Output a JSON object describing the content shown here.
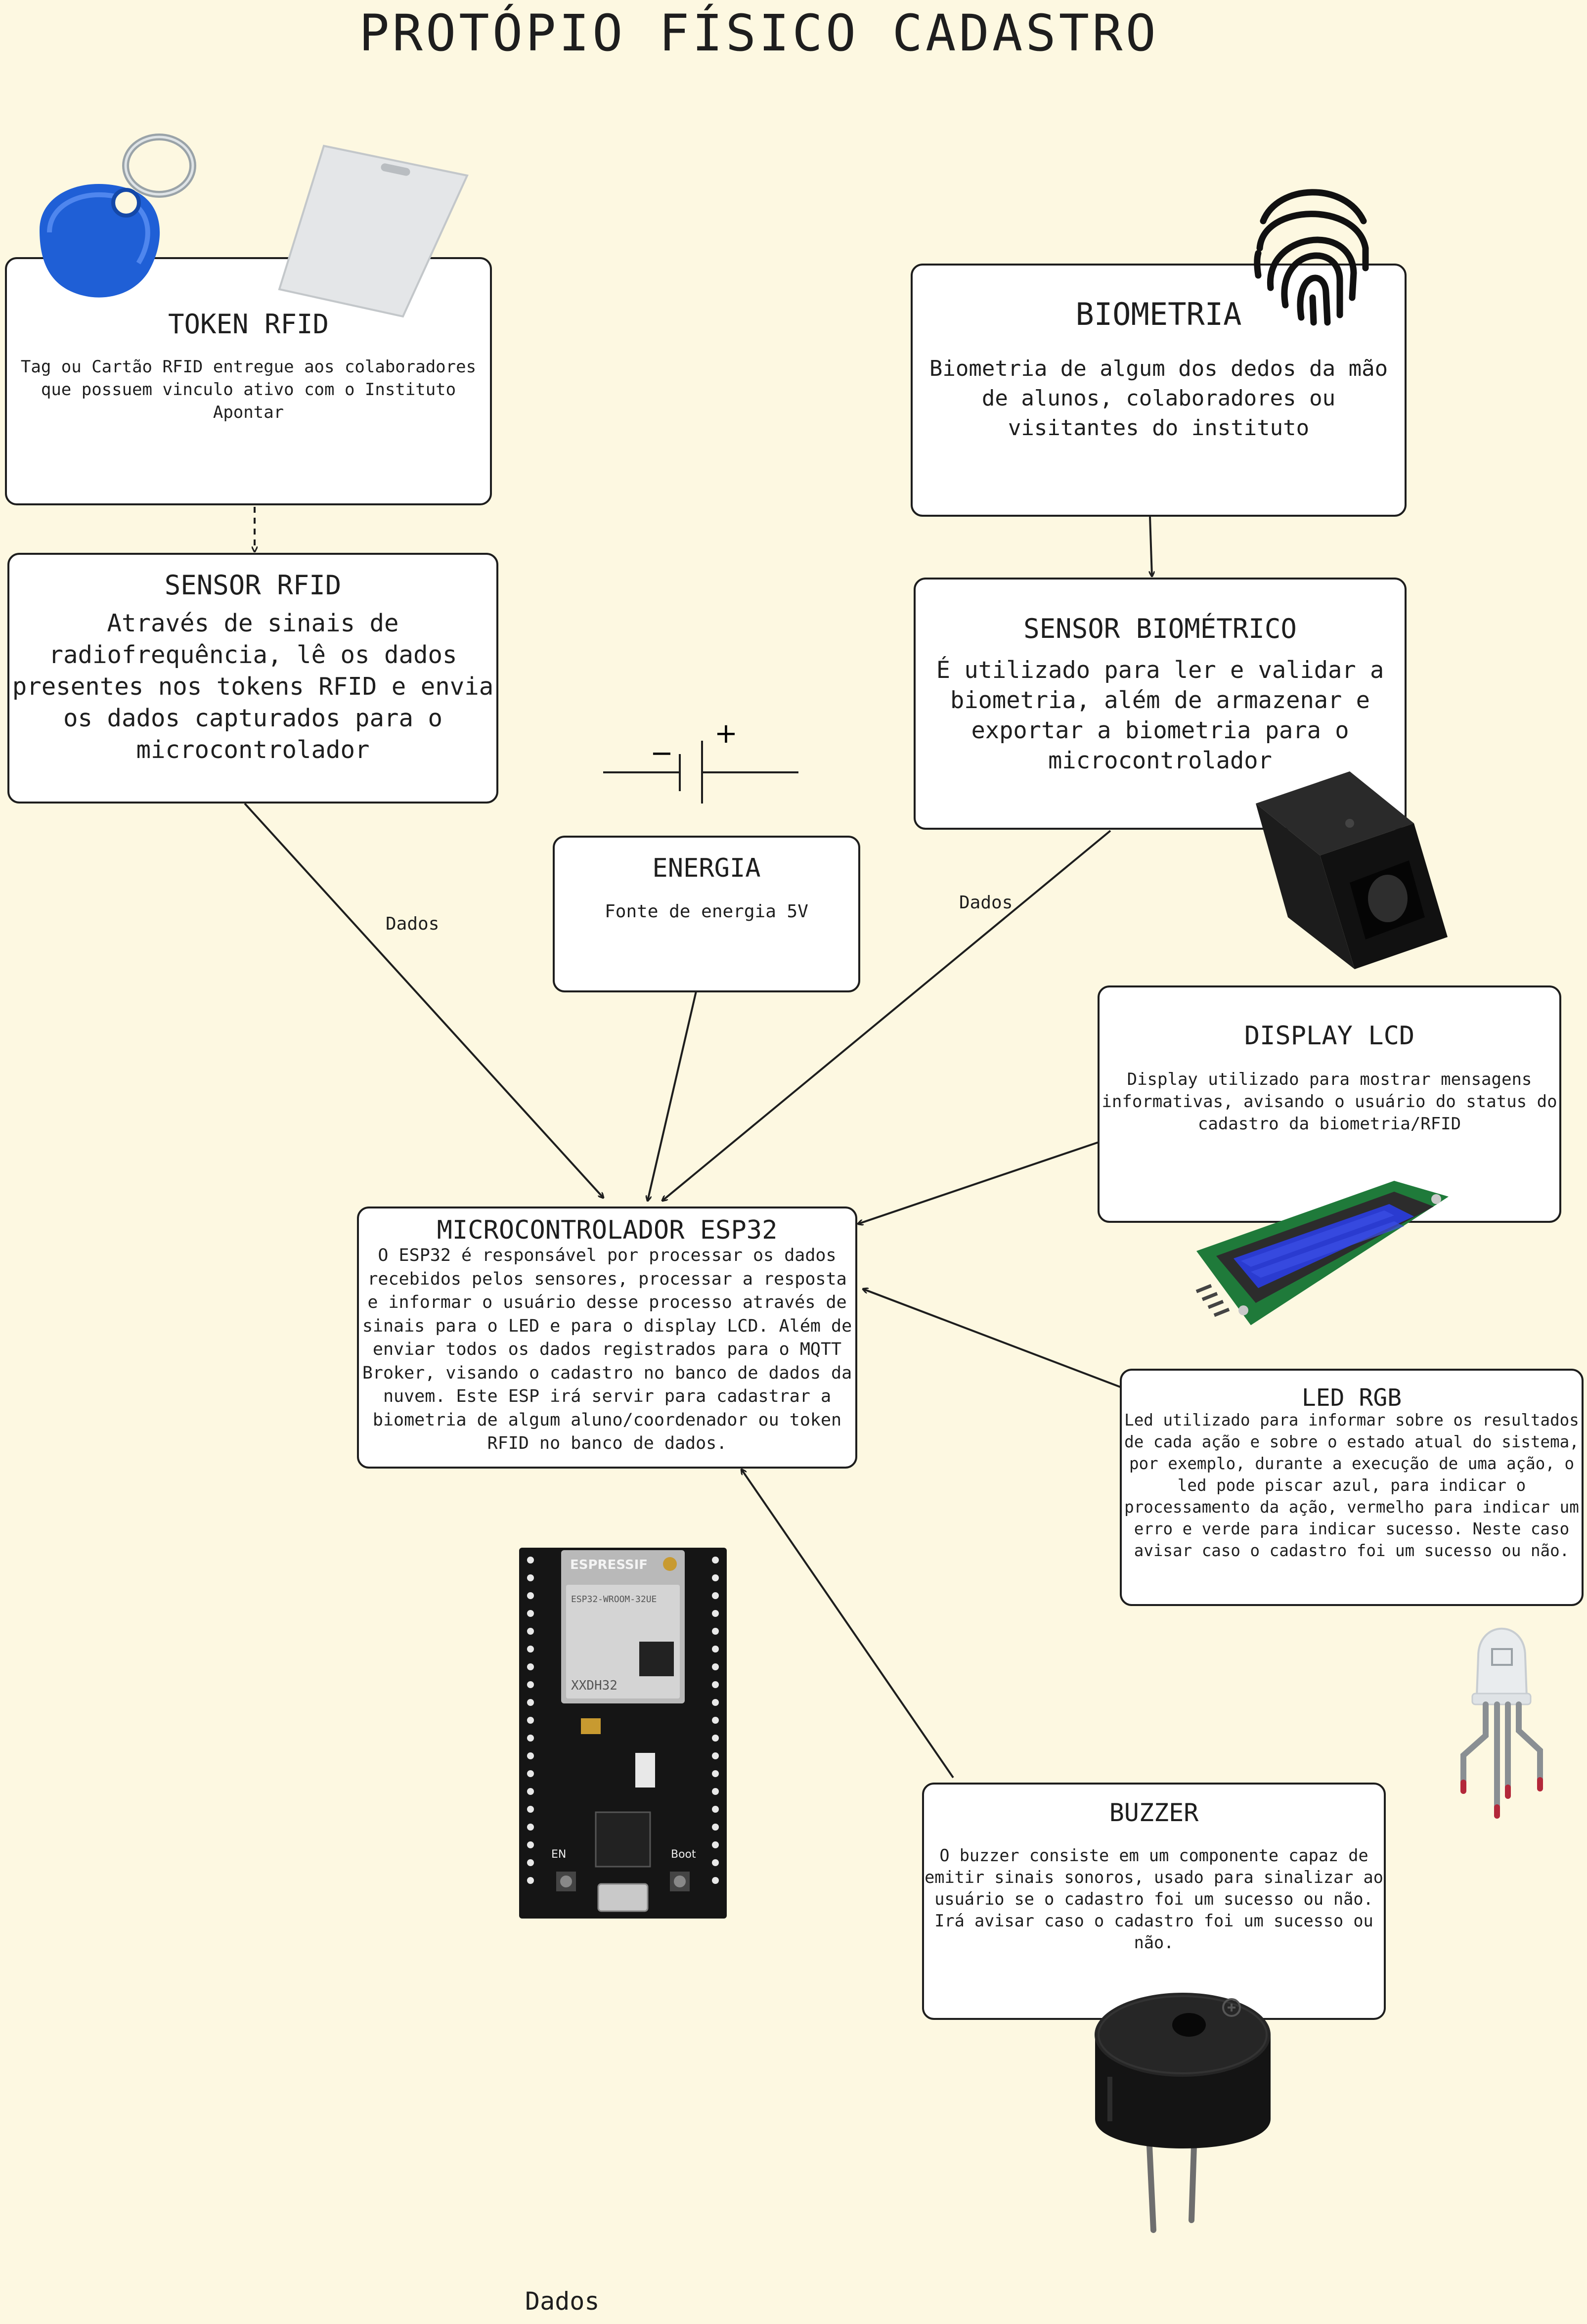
{
  "title": "PROTÓPIO FÍSICO CADASTRO",
  "nodes": {
    "token_rfid": {
      "title": "TOKEN RFID",
      "text": "Tag ou Cartão RFID entregue aos colaboradores\nque possuem vinculo ativo com o Instituto\nApontar"
    },
    "biometria": {
      "title": "BIOMETRIA",
      "text": "Biometria de algum dos dedos da mão\nde alunos, colaboradores ou\nvisitantes do instituto"
    },
    "sensor_rfid": {
      "title": "SENSOR RFID",
      "text": "Através de sinais de\nradiofrequência, lê os dados\npresentes nos tokens RFID e envia\nos dados capturados para o\nmicrocontrolador"
    },
    "sensor_biometrico": {
      "title": "SENSOR BIOMÉTRICO",
      "text": "É utilizado para ler e validar a\nbiometria, além de armazenar e\nexportar a biometria para o\nmicrocontrolador"
    },
    "energia": {
      "title": "ENERGIA",
      "text": "Fonte de energia 5V"
    },
    "display_lcd": {
      "title": "DISPLAY LCD",
      "text": "Display utilizado para mostrar mensagens\ninformativas, avisando o usuário do status do\ncadastro da biometria/RFID"
    },
    "esp32": {
      "title": "MICROCONTROLADOR ESP32",
      "text": "O ESP32 é responsável por processar os dados\nrecebidos pelos sensores, processar a  resposta\ne informar o usuário desse processo através de\nsinais para o LED e para o display LCD. Além de\nenviar todos os dados registrados para o MQTT\nBroker, visando o cadastro no banco de dados da\nnuvem. Este ESP irá servir para cadastrar a\nbiometria de algum aluno/coordenador ou token\nRFID no banco de dados."
    },
    "led_rgb": {
      "title": "LED RGB",
      "text": "Led utilizado para informar sobre os resultados\nde cada ação e sobre o estado atual do sistema,\npor exemplo, durante a execução de uma ação, o\nled pode piscar azul, para indicar o\nprocessamento da ação, vermelho para indicar um\nerro e verde para indicar sucesso. Neste caso\navisar caso o cadastro foi um sucesso ou não."
    },
    "buzzer": {
      "title": "BUZZER",
      "text": "O buzzer consiste em um componente capaz de\nemitir sinais sonoros, usado para sinalizar ao\nusuário se o cadastro foi um sucesso ou não.\nIrá avisar caso o cadastro foi um sucesso ou\nnão."
    }
  },
  "edge_labels": {
    "rfid_to_esp": "Dados",
    "bio_to_esp": "Dados",
    "bottom": "Dados"
  },
  "esp32_board": {
    "brand": "ESPRESSIF",
    "module": "ESP32-WROOM-32UE",
    "chip": "XXDH32",
    "en_label": "EN",
    "boot_label": "Boot"
  },
  "battery_symbol": {
    "minus": "−",
    "plus": "+"
  },
  "colors": {
    "background": "#fdf8e1",
    "stroke": "#1e1e1e",
    "box_fill": "#ffffff",
    "rfid_tag": "#1f5fd6",
    "lcd_screen": "#2a3bd0",
    "pcb_green": "#1f7a3a",
    "led_tips": "#b3283a"
  },
  "icons": [
    "rfid-keyfob-icon",
    "rfid-card-icon",
    "fingerprint-icon",
    "fingerprint-sensor-icon",
    "battery-symbol-icon",
    "lcd-display-icon",
    "esp32-board-icon",
    "rgb-led-icon",
    "buzzer-icon"
  ]
}
